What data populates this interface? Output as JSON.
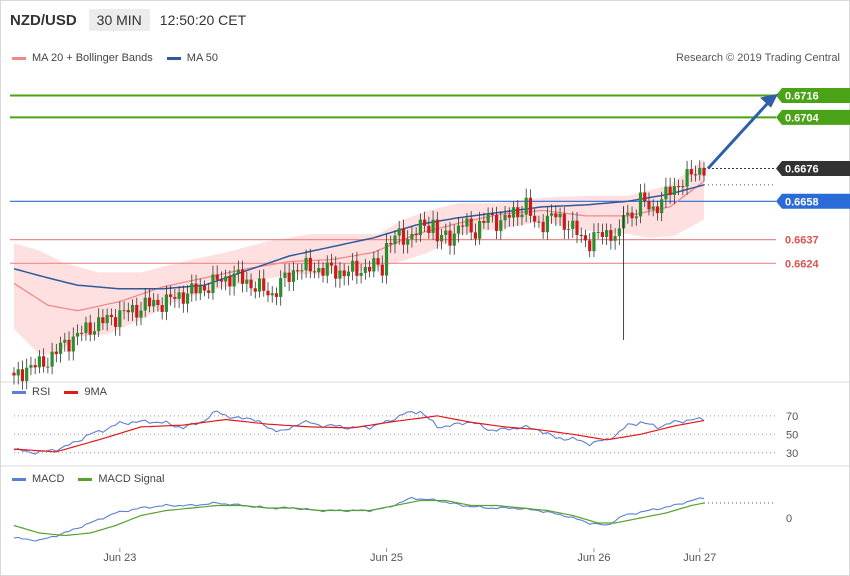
{
  "header": {
    "pair": "NZD/USD",
    "timeframe": "30 MIN",
    "time": "12:50:20 CET"
  },
  "legend_main": [
    {
      "label": "MA 20 + Bollinger Bands",
      "color": "#f08a8a"
    },
    {
      "label": "MA 50",
      "color": "#2e5a9c"
    }
  ],
  "copyright": "Research © 2019 Trading Central",
  "legend_rsi": [
    {
      "label": "RSI",
      "color": "#5b7fd6"
    },
    {
      "label": "9MA",
      "color": "#e01b1b"
    }
  ],
  "legend_macd": [
    {
      "label": "MACD",
      "color": "#5b7fd6"
    },
    {
      "label": "MACD Signal",
      "color": "#5aa02c"
    }
  ],
  "colors": {
    "up": "#2e8b2e",
    "down": "#cc1a1a",
    "ma20": "#f08a8a",
    "ma50": "#2e5a9c",
    "band": "#ffd6d6",
    "target": "#4aa316",
    "pivot": "#2a6bd8",
    "support": "#f08a8a",
    "last": "#333333",
    "rsi": "#5b7fd6",
    "rsi_ma": "#e01b1b",
    "macd": "#5b7fd6",
    "macd_signal": "#5aa02c"
  },
  "chart_data": [
    {
      "type": "candlestick",
      "title": "NZD/USD 30 MIN",
      "ylim": [
        0.656,
        0.673
      ],
      "x_labels": [
        {
          "label": "Jun 23",
          "index": 25
        },
        {
          "label": "Jun 25",
          "index": 88
        },
        {
          "label": "Jun 26",
          "index": 137
        },
        {
          "label": "Jun 27",
          "index": 162
        }
      ],
      "levels": [
        {
          "value": 0.6716,
          "label": "0.6716",
          "role": "target"
        },
        {
          "value": 0.6704,
          "label": "0.6704",
          "role": "target"
        },
        {
          "value": 0.6676,
          "label": "0.6676",
          "role": "last"
        },
        {
          "value": 0.6658,
          "label": "0.6658",
          "role": "pivot"
        },
        {
          "value": 0.6637,
          "label": "0.6637",
          "role": "support"
        },
        {
          "value": 0.6624,
          "label": "0.6624",
          "role": "support"
        }
      ],
      "close_path": [
        [
          0,
          0.656
        ],
        [
          3,
          0.6567
        ],
        [
          6,
          0.6568
        ],
        [
          9,
          0.6573
        ],
        [
          12,
          0.658
        ],
        [
          16,
          0.6586
        ],
        [
          19,
          0.659
        ],
        [
          22,
          0.6593
        ],
        [
          25,
          0.6596
        ],
        [
          28,
          0.6598
        ],
        [
          31,
          0.6601
        ],
        [
          34,
          0.6602
        ],
        [
          37,
          0.6604
        ],
        [
          40,
          0.6607
        ],
        [
          43,
          0.6609
        ],
        [
          46,
          0.6612
        ],
        [
          49,
          0.6615
        ],
        [
          52,
          0.6617
        ],
        [
          55,
          0.6614
        ],
        [
          58,
          0.661
        ],
        [
          61,
          0.6607
        ],
        [
          63,
          0.6613
        ],
        [
          65,
          0.6617
        ],
        [
          67,
          0.6622
        ],
        [
          69,
          0.6621
        ],
        [
          72,
          0.6621
        ],
        [
          75,
          0.662
        ],
        [
          78,
          0.6619
        ],
        [
          81,
          0.662
        ],
        [
          84,
          0.6622
        ],
        [
          87,
          0.6622
        ],
        [
          88,
          0.6634
        ],
        [
          90,
          0.6638
        ],
        [
          94,
          0.6639
        ],
        [
          97,
          0.6645
        ],
        [
          99,
          0.6646
        ],
        [
          100,
          0.6637
        ],
        [
          103,
          0.6639
        ],
        [
          106,
          0.6645
        ],
        [
          109,
          0.6642
        ],
        [
          112,
          0.6649
        ],
        [
          115,
          0.6647
        ],
        [
          118,
          0.6651
        ],
        [
          121,
          0.6656
        ],
        [
          123,
          0.6645
        ],
        [
          126,
          0.6648
        ],
        [
          128,
          0.665
        ],
        [
          131,
          0.6645
        ],
        [
          134,
          0.6638
        ],
        [
          136,
          0.6636
        ],
        [
          138,
          0.6639
        ],
        [
          141,
          0.6641
        ],
        [
          143,
          0.6638
        ],
        [
          144,
          0.6652
        ],
        [
          146,
          0.665
        ],
        [
          148,
          0.6658
        ],
        [
          151,
          0.6654
        ],
        [
          153,
          0.6658
        ],
        [
          155,
          0.6664
        ],
        [
          157,
          0.6668
        ],
        [
          159,
          0.667
        ],
        [
          161,
          0.6675
        ],
        [
          163,
          0.6676
        ]
      ],
      "ma50_path": [
        [
          0,
          0.6621
        ],
        [
          8,
          0.6616
        ],
        [
          15,
          0.6612
        ],
        [
          25,
          0.661
        ],
        [
          35,
          0.661
        ],
        [
          45,
          0.6612
        ],
        [
          55,
          0.662
        ],
        [
          65,
          0.6628
        ],
        [
          75,
          0.6633
        ],
        [
          85,
          0.6638
        ],
        [
          95,
          0.6645
        ],
        [
          105,
          0.6649
        ],
        [
          115,
          0.6652
        ],
        [
          125,
          0.6655
        ],
        [
          135,
          0.6656
        ],
        [
          145,
          0.6658
        ],
        [
          155,
          0.6662
        ],
        [
          163,
          0.6667
        ]
      ],
      "ma20_path": [
        [
          0,
          0.6613
        ],
        [
          8,
          0.6601
        ],
        [
          15,
          0.6598
        ],
        [
          25,
          0.6603
        ],
        [
          35,
          0.6611
        ],
        [
          45,
          0.6616
        ],
        [
          55,
          0.6621
        ],
        [
          65,
          0.6625
        ],
        [
          75,
          0.6626
        ],
        [
          85,
          0.663
        ],
        [
          95,
          0.664
        ],
        [
          105,
          0.6646
        ],
        [
          115,
          0.6651
        ],
        [
          125,
          0.6653
        ],
        [
          135,
          0.665
        ],
        [
          145,
          0.665
        ],
        [
          155,
          0.6655
        ],
        [
          163,
          0.6669
        ]
      ],
      "band_upper": [
        [
          0,
          0.6635
        ],
        [
          6,
          0.6631
        ],
        [
          12,
          0.6624
        ],
        [
          20,
          0.6619
        ],
        [
          30,
          0.6619
        ],
        [
          40,
          0.6625
        ],
        [
          50,
          0.663
        ],
        [
          60,
          0.6636
        ],
        [
          70,
          0.664
        ],
        [
          78,
          0.664
        ],
        [
          86,
          0.664
        ],
        [
          92,
          0.6648
        ],
        [
          98,
          0.6653
        ],
        [
          105,
          0.6657
        ],
        [
          115,
          0.6657
        ],
        [
          125,
          0.666
        ],
        [
          135,
          0.6661
        ],
        [
          145,
          0.6661
        ],
        [
          155,
          0.6667
        ],
        [
          163,
          0.6681
        ]
      ],
      "band_lower": [
        [
          0,
          0.6588
        ],
        [
          6,
          0.6574
        ],
        [
          10,
          0.6574
        ],
        [
          15,
          0.6584
        ],
        [
          22,
          0.6585
        ],
        [
          30,
          0.6593
        ],
        [
          38,
          0.6603
        ],
        [
          46,
          0.6609
        ],
        [
          56,
          0.6614
        ],
        [
          66,
          0.6618
        ],
        [
          74,
          0.6618
        ],
        [
          82,
          0.662
        ],
        [
          90,
          0.6624
        ],
        [
          98,
          0.663
        ],
        [
          106,
          0.664
        ],
        [
          115,
          0.6643
        ],
        [
          125,
          0.6647
        ],
        [
          135,
          0.6642
        ],
        [
          145,
          0.664
        ],
        [
          150,
          0.6638
        ],
        [
          156,
          0.6639
        ],
        [
          163,
          0.6648
        ]
      ]
    },
    {
      "type": "line",
      "title": "RSI",
      "ylim": [
        20,
        85
      ],
      "ticks": [
        30,
        50,
        70
      ],
      "series": [
        {
          "name": "RSI",
          "values": [
            [
              0,
              33
            ],
            [
              6,
              30
            ],
            [
              12,
              36
            ],
            [
              18,
              50
            ],
            [
              22,
              56
            ],
            [
              25,
              62
            ],
            [
              28,
              63
            ],
            [
              32,
              64
            ],
            [
              36,
              62
            ],
            [
              40,
              57
            ],
            [
              45,
              65
            ],
            [
              48,
              75
            ],
            [
              52,
              67
            ],
            [
              56,
              68
            ],
            [
              60,
              57
            ],
            [
              64,
              53
            ],
            [
              68,
              64
            ],
            [
              72,
              60
            ],
            [
              76,
              59
            ],
            [
              80,
              57
            ],
            [
              84,
              58
            ],
            [
              88,
              63
            ],
            [
              92,
              72
            ],
            [
              96,
              75
            ],
            [
              100,
              58
            ],
            [
              104,
              60
            ],
            [
              108,
              64
            ],
            [
              112,
              55
            ],
            [
              116,
              55
            ],
            [
              120,
              58
            ],
            [
              124,
              55
            ],
            [
              128,
              46
            ],
            [
              132,
              45
            ],
            [
              136,
              40
            ],
            [
              140,
              44
            ],
            [
              143,
              52
            ],
            [
              145,
              60
            ],
            [
              148,
              63
            ],
            [
              152,
              58
            ],
            [
              156,
              63
            ],
            [
              160,
              66
            ],
            [
              163,
              66
            ]
          ]
        },
        {
          "name": "9MA",
          "values": [
            [
              0,
              34
            ],
            [
              10,
              31
            ],
            [
              20,
              44
            ],
            [
              30,
              58
            ],
            [
              40,
              60
            ],
            [
              50,
              66
            ],
            [
              60,
              61
            ],
            [
              70,
              58
            ],
            [
              80,
              57
            ],
            [
              90,
              64
            ],
            [
              100,
              70
            ],
            [
              108,
              63
            ],
            [
              116,
              58
            ],
            [
              124,
              55
            ],
            [
              132,
              50
            ],
            [
              140,
              44
            ],
            [
              148,
              50
            ],
            [
              156,
              59
            ],
            [
              163,
              65
            ]
          ]
        }
      ]
    },
    {
      "type": "line",
      "title": "MACD",
      "ylim": [
        -0.0012,
        0.0012
      ],
      "ticks": [
        0
      ],
      "series": [
        {
          "name": "MACD",
          "values": [
            [
              0,
              -0.0008
            ],
            [
              6,
              -0.0009
            ],
            [
              12,
              -0.0006
            ],
            [
              18,
              -0.0002
            ],
            [
              24,
              0.0002
            ],
            [
              30,
              0.0004
            ],
            [
              36,
              0.0005
            ],
            [
              42,
              0.0005
            ],
            [
              48,
              0.0006
            ],
            [
              54,
              0.0005
            ],
            [
              60,
              0.0004
            ],
            [
              66,
              0.0004
            ],
            [
              72,
              0.0003
            ],
            [
              78,
              0.0003
            ],
            [
              84,
              0.0003
            ],
            [
              88,
              0.0004
            ],
            [
              94,
              0.0008
            ],
            [
              100,
              0.0007
            ],
            [
              106,
              0.0005
            ],
            [
              112,
              0.0004
            ],
            [
              118,
              0.0004
            ],
            [
              124,
              0.0003
            ],
            [
              130,
              0.0001
            ],
            [
              136,
              -0.0002
            ],
            [
              140,
              -0.0003
            ],
            [
              144,
              0.0001
            ],
            [
              150,
              0.0003
            ],
            [
              156,
              0.0005
            ],
            [
              160,
              0.0007
            ],
            [
              163,
              0.0008
            ]
          ]
        },
        {
          "name": "MACD Signal",
          "values": [
            [
              0,
              -0.0003
            ],
            [
              6,
              -0.0006
            ],
            [
              12,
              -0.0007
            ],
            [
              18,
              -0.0006
            ],
            [
              24,
              -0.0003
            ],
            [
              30,
              0.0001
            ],
            [
              36,
              0.0003
            ],
            [
              42,
              0.0004
            ],
            [
              48,
              0.0005
            ],
            [
              54,
              0.0005
            ],
            [
              60,
              0.0004
            ],
            [
              66,
              0.0004
            ],
            [
              72,
              0.0003
            ],
            [
              78,
              0.0003
            ],
            [
              84,
              0.0003
            ],
            [
              90,
              0.0005
            ],
            [
              96,
              0.0007
            ],
            [
              102,
              0.0007
            ],
            [
              108,
              0.0005
            ],
            [
              114,
              0.0005
            ],
            [
              120,
              0.0004
            ],
            [
              126,
              0.0003
            ],
            [
              132,
              0.0001
            ],
            [
              138,
              -0.0002
            ],
            [
              142,
              -0.0002
            ],
            [
              148,
              0.0
            ],
            [
              154,
              0.0002
            ],
            [
              160,
              0.0005
            ],
            [
              163,
              0.0006
            ]
          ]
        }
      ]
    }
  ]
}
